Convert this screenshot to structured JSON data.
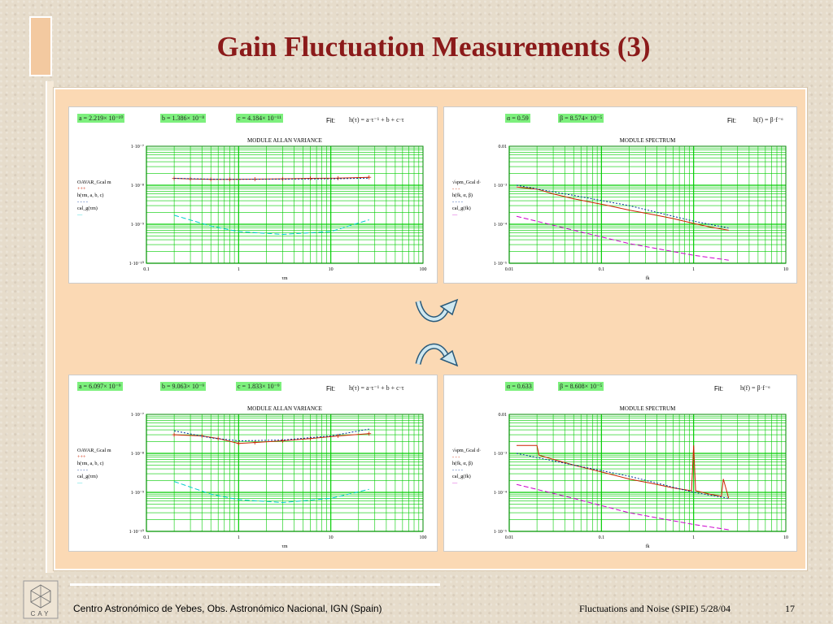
{
  "slide": {
    "title": "Gain Fluctuation Measurements (3)",
    "footer_left": "Centro Astronómico de Yebes, Obs. Astronómico Nacional, IGN (Spain)",
    "footer_right": "Fluctuations and Noise (SPIE)  5/28/04",
    "page_number": "17",
    "logo_text": "CAY"
  },
  "colors": {
    "title": "#8b1a1a",
    "panel": "#fbd9b4",
    "highlight": "#7df07d",
    "grid": "#00cc00",
    "data": "#cc2200",
    "fit": "#003399",
    "cal": "#00cccc",
    "spec_fit": "#cc00cc"
  },
  "panels": [
    {
      "id": "allan-top",
      "params": [
        "a = 2.219× 10⁻¹⁰",
        "b = 1.386× 10⁻⁸",
        "c = 4.184× 10⁻¹¹"
      ],
      "fit_label": "Fit:",
      "formula": "h(τ) = a·τ⁻¹ + b + c·τ",
      "chart_data": {
        "type": "line",
        "title": "MODULE ALLAN VARIANCE",
        "xlabel": "τm",
        "xscale": "log",
        "yscale": "log",
        "xlim": [
          0.1,
          100
        ],
        "ylim": [
          1e-10,
          1e-07
        ],
        "xticks": [
          "0.1",
          "1",
          "10",
          "100"
        ],
        "yticks": [
          "1·10⁻¹⁰",
          "1·10⁻⁹",
          "1·10⁻⁸",
          "1·10⁻⁷"
        ],
        "legend": [
          "OAVAR_Gcal m",
          "+++",
          "h(τm, a, b, c)",
          "- - - -",
          "cal_g(τm)",
          "—"
        ],
        "series": [
          {
            "x": [
              0.2,
              0.3,
              0.5,
              0.8,
              1.5,
              3,
              6,
              12,
              26
            ],
            "y": [
              1.5e-08,
              1.45e-08,
              1.42e-08,
              1.42e-08,
              1.43e-08,
              1.46e-08,
              1.5e-08,
              1.52e-08,
              1.6e-08
            ],
            "color": "#cc2200",
            "dash": "none"
          },
          {
            "x": [
              0.2,
              0.5,
              1,
              3,
              10,
              26
            ],
            "y": [
              1.5e-08,
              1.43e-08,
              1.42e-08,
              1.43e-08,
              1.46e-08,
              1.52e-08
            ],
            "color": "#003399",
            "dash": "2,2"
          },
          {
            "x": [
              0.2,
              0.5,
              1,
              3,
              10,
              26
            ],
            "y": [
              1.7e-09,
              9e-10,
              6.5e-10,
              5.5e-10,
              6.5e-10,
              1.3e-09
            ],
            "color": "#00cccc",
            "dash": "6,3"
          }
        ]
      }
    },
    {
      "id": "spectrum-top",
      "params": [
        "α = 0.59",
        "β = 8.574× 10⁻⁵"
      ],
      "fit_label": "Fit:",
      "formula": "h(f) = β·f⁻ᵅ",
      "chart_data": {
        "type": "line",
        "title": "MODULE SPECTRUM",
        "xlabel": "fk",
        "xscale": "log",
        "yscale": "log",
        "xlim": [
          0.01,
          10
        ],
        "ylim": [
          1e-05,
          0.01
        ],
        "xticks": [
          "0.01",
          "0.1",
          "1",
          "10"
        ],
        "yticks": [
          "1·10⁻⁵",
          "1·10⁻⁴",
          "1·10⁻³",
          "0.01"
        ],
        "legend": [
          "√spm_Gcal d·",
          "- - -",
          "h(fk, α, β)",
          "- - - -",
          "cal_g(fk)",
          "—"
        ],
        "series": [
          {
            "x": [
              0.012,
              0.02,
              0.03,
              0.05,
              0.08,
              0.12,
              0.2,
              0.35,
              0.6,
              1.0,
              1.5,
              2.4
            ],
            "y": [
              0.0009,
              0.0008,
              0.0006,
              0.00045,
              0.00036,
              0.0003,
              0.00023,
              0.00018,
              0.00014,
              0.000105,
              8.5e-05,
              7e-05
            ],
            "color": "#cc2200",
            "dash": "none"
          },
          {
            "x": [
              0.012,
              0.05,
              0.2,
              1,
              2.4
            ],
            "y": [
              0.001,
              0.00055,
              0.0003,
              0.00012,
              8e-05
            ],
            "color": "#003399",
            "dash": "2,2"
          },
          {
            "x": [
              0.012,
              0.05,
              0.2,
              1,
              2.4
            ],
            "y": [
              0.00016,
              7e-05,
              3.2e-05,
              1.6e-05,
              1.2e-05
            ],
            "color": "#cc00cc",
            "dash": "6,3"
          }
        ]
      }
    },
    {
      "id": "allan-bottom",
      "params": [
        "a = 6.097× 10⁻⁹",
        "b = 9.063× 10⁻⁹",
        "c = 1.833× 10⁻⁹"
      ],
      "fit_label": "Fit:",
      "formula": "h(τ) = a·τ⁻¹ + b + c·τ",
      "chart_data": {
        "type": "line",
        "title": "MODULE ALLAN VARIANCE",
        "xlabel": "τm",
        "xscale": "log",
        "yscale": "log",
        "xlim": [
          0.1,
          100
        ],
        "ylim": [
          1e-10,
          1e-07
        ],
        "xticks": [
          "0.1",
          "1",
          "10",
          "100"
        ],
        "yticks": [
          "1·10⁻¹⁰",
          "1·10⁻⁹",
          "1·10⁻⁸",
          "1·10⁻⁷"
        ],
        "legend": [
          "OAVAR_Gcal m",
          "+++",
          "h(τm, a, b, c)",
          "- - - -",
          "cal_g(τm)",
          "—"
        ],
        "series": [
          {
            "x": [
              0.2,
              0.4,
              0.6,
              1,
              1.5,
              3,
              6,
              12,
              26
            ],
            "y": [
              3e-08,
              2.8e-08,
              2.4e-08,
              1.8e-08,
              1.9e-08,
              2.1e-08,
              2.4e-08,
              2.8e-08,
              3.2e-08
            ],
            "color": "#cc2200",
            "dash": "none"
          },
          {
            "x": [
              0.2,
              0.5,
              1,
              3,
              10,
              26
            ],
            "y": [
              3.8e-08,
              2.5e-08,
              2.1e-08,
              2.2e-08,
              2.8e-08,
              4.2e-08
            ],
            "color": "#003399",
            "dash": "2,2"
          },
          {
            "x": [
              0.2,
              0.5,
              1,
              3,
              10,
              26
            ],
            "y": [
              1.9e-09,
              9e-10,
              6.5e-10,
              5.5e-10,
              7e-10,
              1.2e-09
            ],
            "color": "#00cccc",
            "dash": "6,3"
          }
        ]
      }
    },
    {
      "id": "spectrum-bottom",
      "params": [
        "α = 0.633",
        "β = 8.608× 10⁻⁵"
      ],
      "fit_label": "Fit:",
      "formula": "h(f) = β·f⁻ᵅ",
      "chart_data": {
        "type": "line",
        "title": "MODULE SPECTRUM",
        "xlabel": "fk",
        "xscale": "log",
        "yscale": "log",
        "xlim": [
          0.01,
          10
        ],
        "ylim": [
          1e-05,
          0.01
        ],
        "xticks": [
          "0.01",
          "0.1",
          "1",
          "10"
        ],
        "yticks": [
          "1·10⁻⁵",
          "1·10⁻⁴",
          "1·10⁻³",
          "0.01"
        ],
        "legend": [
          "√spm_Gcal d·",
          "- - -",
          "h(fk, α, β)",
          "- - - -",
          "cal_g(fk)",
          "—"
        ],
        "series": [
          {
            "x": [
              0.012,
              0.02,
              0.021,
              0.03,
              0.05,
              0.08,
              0.12,
              0.2,
              0.35,
              0.6,
              0.95,
              1.0,
              1.05,
              1.5,
              2.0,
              2.1,
              2.4
            ],
            "y": [
              0.0016,
              0.0016,
              0.0009,
              0.0007,
              0.0005,
              0.00038,
              0.0003,
              0.00022,
              0.00017,
              0.00013,
              0.00011,
              0.0016,
              0.00011,
              9e-05,
              8e-05,
              0.00022,
              7e-05
            ],
            "color": "#cc2200",
            "dash": "none"
          },
          {
            "x": [
              0.012,
              0.05,
              0.2,
              1,
              2.4
            ],
            "y": [
              0.001,
              0.0005,
              0.00026,
              0.0001,
              7e-05
            ],
            "color": "#003399",
            "dash": "2,2"
          },
          {
            "x": [
              0.012,
              0.05,
              0.2,
              1,
              2.4
            ],
            "y": [
              0.00016,
              7e-05,
              3e-05,
              1.5e-05,
              1.1e-05
            ],
            "color": "#cc00cc",
            "dash": "6,3"
          }
        ]
      }
    }
  ]
}
